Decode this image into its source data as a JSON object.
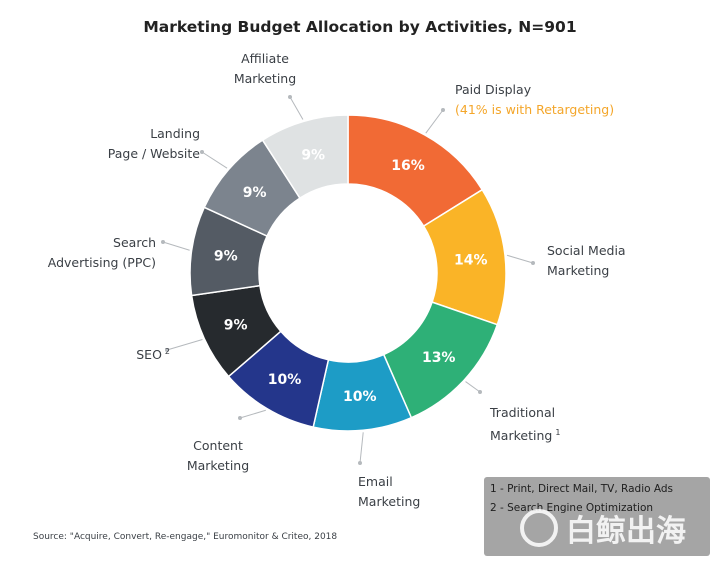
{
  "chart_data": {
    "type": "pie",
    "variant": "donut",
    "title": "Marketing Budget Allocation by Activities, N=901",
    "slices": [
      {
        "label": "Paid Display",
        "sub": "(41% is with Retargeting)",
        "value": 16,
        "text": "16%",
        "color": "#f16a35"
      },
      {
        "label": "Social Media Marketing",
        "value": 14,
        "text": "14%",
        "color": "#fab427"
      },
      {
        "label": "Traditional Marketing",
        "note": "1",
        "value": 13,
        "text": "13%",
        "color": "#2eb077"
      },
      {
        "label": "Email Marketing",
        "value": 10,
        "text": "10%",
        "color": "#1d9cc6"
      },
      {
        "label": "Content Marketing",
        "value": 10,
        "text": "10%",
        "color": "#24368b"
      },
      {
        "label": "SEO",
        "note": "2",
        "value": 9,
        "text": "9%",
        "color": "#262a2e"
      },
      {
        "label": "Search Advertising (PPC)",
        "value": 9,
        "text": "9%",
        "color": "#545b64"
      },
      {
        "label": "Landing Page / Website",
        "value": 9,
        "text": "9%",
        "color": "#7c848e"
      },
      {
        "label": "Affiliate Marketing",
        "value": 9,
        "text": "9%",
        "color": "#dfe2e3"
      }
    ]
  },
  "labels": {
    "paid_display": "Paid Display",
    "paid_display_sub": "(41% is with Retargeting)",
    "social_1": "Social Media",
    "social_2": "Marketing",
    "traditional_1": "Traditional",
    "traditional_2": "Marketing",
    "traditional_note": "1",
    "email_1": "Email",
    "email_2": "Marketing",
    "content_1": "Content",
    "content_2": "Marketing",
    "seo": "SEO",
    "seo_note": "2",
    "search_1": "Search",
    "search_2": "Advertising (PPC)",
    "landing_1": "Landing",
    "landing_2": "Page / Website",
    "affiliate_1": "Affiliate",
    "affiliate_2": "Marketing"
  },
  "source": "Source: \"Acquire, Convert, Re-engage,\" Euromonitor & Criteo, 2018",
  "notes": [
    "1 - Print, Direct Mail, TV, Radio Ads",
    "2 - Search Engine Optimization"
  ],
  "watermark": "白鲸出海"
}
